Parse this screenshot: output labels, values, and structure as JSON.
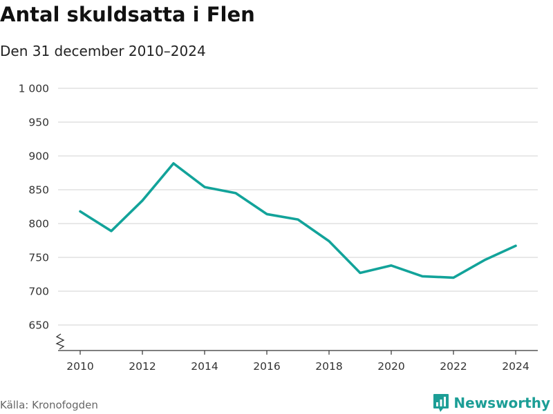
{
  "colors": {
    "line": "#12a39a",
    "grid": "#d9d9d9",
    "axis": "#333333",
    "brand": "#1c9e96"
  },
  "header": {
    "title": "Antal skuldsatta i Flen",
    "subtitle": "Den 31 december 2010–2024"
  },
  "footer": {
    "source": "Källa: Kronofogden",
    "brand": "Newsworthy",
    "brand_icon": "newsworthy-logo-icon"
  },
  "chart_data": {
    "type": "line",
    "title": "Antal skuldsatta i Flen",
    "subtitle": "Den 31 december 2010–2024",
    "x": [
      2010,
      2011,
      2012,
      2013,
      2014,
      2015,
      2016,
      2017,
      2018,
      2019,
      2020,
      2021,
      2022,
      2023,
      2024
    ],
    "series": [
      {
        "values": [
          818,
          789,
          834,
          889,
          854,
          845,
          814,
          806,
          774,
          727,
          738,
          722,
          720,
          746,
          767
        ]
      }
    ],
    "x_tick_labels": [
      "2010",
      "2012",
      "2014",
      "2016",
      "2018",
      "2020",
      "2022",
      "2024"
    ],
    "y_tick_values": [
      650,
      700,
      750,
      800,
      850,
      900,
      950,
      1000
    ],
    "y_tick_labels": [
      "650",
      "700",
      "750",
      "800",
      "850",
      "900",
      "950",
      "1 000"
    ],
    "xlim": [
      2010,
      2024
    ],
    "ylim": [
      650,
      1000
    ],
    "y_axis_break": true,
    "grid": "horizontal",
    "legend": "none"
  }
}
